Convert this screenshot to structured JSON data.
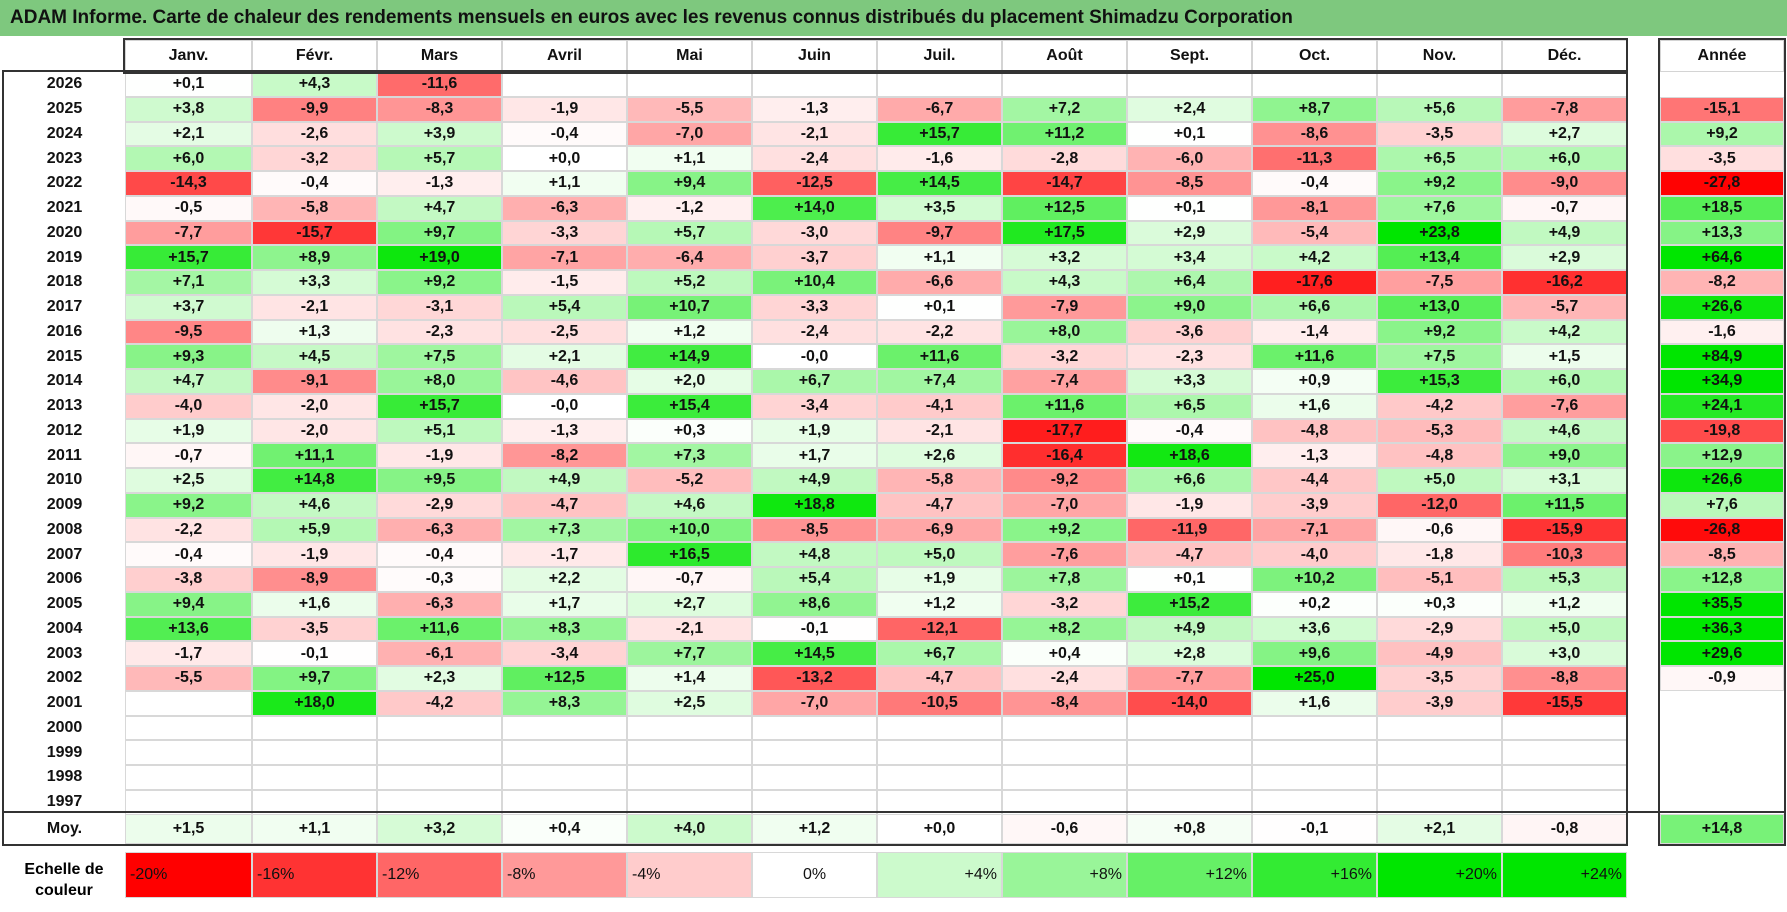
{
  "title": "ADAM Informe. Carte de chaleur des rendements mensuels en euros avec les revenus connus distribués du placement Shimadzu Corporation",
  "chart_data": {
    "type": "heatmap",
    "title": "ADAM Informe. Carte de chaleur des rendements mensuels en euros avec les revenus connus distribués du placement Shimadzu Corporation",
    "months": [
      "Janv.",
      "Févr.",
      "Mars",
      "Avril",
      "Mai",
      "Juin",
      "Juil.",
      "Août",
      "Sept.",
      "Oct.",
      "Nov.",
      "Déc."
    ],
    "year_header": "Année",
    "rows": [
      {
        "year": "2026",
        "values": [
          "+0,1",
          "+4,3",
          "-11,6",
          "",
          "",
          "",
          "",
          "",
          "",
          "",
          "",
          ""
        ],
        "annual": ""
      },
      {
        "year": "2025",
        "values": [
          "+3,8",
          "-9,9",
          "-8,3",
          "-1,9",
          "-5,5",
          "-1,3",
          "-6,7",
          "+7,2",
          "+2,4",
          "+8,7",
          "+5,6",
          "-7,8"
        ],
        "annual": "-15,1"
      },
      {
        "year": "2024",
        "values": [
          "+2,1",
          "-2,6",
          "+3,9",
          "-0,4",
          "-7,0",
          "-2,1",
          "+15,7",
          "+11,2",
          "+0,1",
          "-8,6",
          "-3,5",
          "+2,7"
        ],
        "annual": "+9,2"
      },
      {
        "year": "2023",
        "values": [
          "+6,0",
          "-3,2",
          "+5,7",
          "+0,0",
          "+1,1",
          "-2,4",
          "-1,6",
          "-2,8",
          "-6,0",
          "-11,3",
          "+6,5",
          "+6,0"
        ],
        "annual": "-3,5"
      },
      {
        "year": "2022",
        "values": [
          "-14,3",
          "-0,4",
          "-1,3",
          "+1,1",
          "+9,4",
          "-12,5",
          "+14,5",
          "-14,7",
          "-8,5",
          "-0,4",
          "+9,2",
          "-9,0"
        ],
        "annual": "-27,8"
      },
      {
        "year": "2021",
        "values": [
          "-0,5",
          "-5,8",
          "+4,7",
          "-6,3",
          "-1,2",
          "+14,0",
          "+3,5",
          "+12,5",
          "+0,1",
          "-8,1",
          "+7,6",
          "-0,7"
        ],
        "annual": "+18,5"
      },
      {
        "year": "2020",
        "values": [
          "-7,7",
          "-15,7",
          "+9,7",
          "-3,3",
          "+5,7",
          "-3,0",
          "-9,7",
          "+17,5",
          "+2,9",
          "-5,4",
          "+23,8",
          "+4,9"
        ],
        "annual": "+13,3"
      },
      {
        "year": "2019",
        "values": [
          "+15,7",
          "+8,9",
          "+19,0",
          "-7,1",
          "-6,4",
          "-3,7",
          "+1,1",
          "+3,2",
          "+3,4",
          "+4,2",
          "+13,4",
          "+2,9"
        ],
        "annual": "+64,6"
      },
      {
        "year": "2018",
        "values": [
          "+7,1",
          "+3,3",
          "+9,2",
          "-1,5",
          "+5,2",
          "+10,4",
          "-6,6",
          "+4,3",
          "+6,4",
          "-17,6",
          "-7,5",
          "-16,2"
        ],
        "annual": "-8,2"
      },
      {
        "year": "2017",
        "values": [
          "+3,7",
          "-2,1",
          "-3,1",
          "+5,4",
          "+10,7",
          "-3,3",
          "+0,1",
          "-7,9",
          "+9,0",
          "+6,6",
          "+13,0",
          "-5,7"
        ],
        "annual": "+26,6"
      },
      {
        "year": "2016",
        "values": [
          "-9,5",
          "+1,3",
          "-2,3",
          "-2,5",
          "+1,2",
          "-2,4",
          "-2,2",
          "+8,0",
          "-3,6",
          "-1,4",
          "+9,2",
          "+4,2"
        ],
        "annual": "-1,6"
      },
      {
        "year": "2015",
        "values": [
          "+9,3",
          "+4,5",
          "+7,5",
          "+2,1",
          "+14,9",
          "-0,0",
          "+11,6",
          "-3,2",
          "-2,3",
          "+11,6",
          "+7,5",
          "+1,5"
        ],
        "annual": "+84,9"
      },
      {
        "year": "2014",
        "values": [
          "+4,7",
          "-9,1",
          "+8,0",
          "-4,6",
          "+2,0",
          "+6,7",
          "+7,4",
          "-7,4",
          "+3,3",
          "+0,9",
          "+15,3",
          "+6,0"
        ],
        "annual": "+34,9"
      },
      {
        "year": "2013",
        "values": [
          "-4,0",
          "-2,0",
          "+15,7",
          "-0,0",
          "+15,4",
          "-3,4",
          "-4,1",
          "+11,6",
          "+6,5",
          "+1,6",
          "-4,2",
          "-7,6"
        ],
        "annual": "+24,1"
      },
      {
        "year": "2012",
        "values": [
          "+1,9",
          "-2,0",
          "+5,1",
          "-1,3",
          "+0,3",
          "+1,9",
          "-2,1",
          "-17,7",
          "-0,4",
          "-4,8",
          "-5,3",
          "+4,6"
        ],
        "annual": "-19,8"
      },
      {
        "year": "2011",
        "values": [
          "-0,7",
          "+11,1",
          "-1,9",
          "-8,2",
          "+7,3",
          "+1,7",
          "+2,6",
          "-16,4",
          "+18,6",
          "-1,3",
          "-4,8",
          "+9,0"
        ],
        "annual": "+12,9"
      },
      {
        "year": "2010",
        "values": [
          "+2,5",
          "+14,8",
          "+9,5",
          "+4,9",
          "-5,2",
          "+4,9",
          "-5,8",
          "-9,2",
          "+6,6",
          "-4,4",
          "+5,0",
          "+3,1"
        ],
        "annual": "+26,6"
      },
      {
        "year": "2009",
        "values": [
          "+9,2",
          "+4,6",
          "-2,9",
          "-4,7",
          "+4,6",
          "+18,8",
          "-4,7",
          "-7,0",
          "-1,9",
          "-3,9",
          "-12,0",
          "+11,5"
        ],
        "annual": "+7,6"
      },
      {
        "year": "2008",
        "values": [
          "-2,2",
          "+5,9",
          "-6,3",
          "+7,3",
          "+10,0",
          "-8,5",
          "-6,9",
          "+9,2",
          "-11,9",
          "-7,1",
          "-0,6",
          "-15,9"
        ],
        "annual": "-26,8"
      },
      {
        "year": "2007",
        "values": [
          "-0,4",
          "-1,9",
          "-0,4",
          "-1,7",
          "+16,5",
          "+4,8",
          "+5,0",
          "-7,6",
          "-4,7",
          "-4,0",
          "-1,8",
          "-10,3"
        ],
        "annual": "-8,5"
      },
      {
        "year": "2006",
        "values": [
          "-3,8",
          "-8,9",
          "-0,3",
          "+2,2",
          "-0,7",
          "+5,4",
          "+1,9",
          "+7,8",
          "+0,1",
          "+10,2",
          "-5,1",
          "+5,3"
        ],
        "annual": "+12,8"
      },
      {
        "year": "2005",
        "values": [
          "+9,4",
          "+1,6",
          "-6,3",
          "+1,7",
          "+2,7",
          "+8,6",
          "+1,2",
          "-3,2",
          "+15,2",
          "+0,2",
          "+0,3",
          "+1,2"
        ],
        "annual": "+35,5"
      },
      {
        "year": "2004",
        "values": [
          "+13,6",
          "-3,5",
          "+11,6",
          "+8,3",
          "-2,1",
          "-0,1",
          "-12,1",
          "+8,2",
          "+4,9",
          "+3,6",
          "-2,9",
          "+5,0"
        ],
        "annual": "+36,3"
      },
      {
        "year": "2003",
        "values": [
          "-1,7",
          "-0,1",
          "-6,1",
          "-3,4",
          "+7,7",
          "+14,5",
          "+6,7",
          "+0,4",
          "+2,8",
          "+9,6",
          "-4,9",
          "+3,0"
        ],
        "annual": "+29,6"
      },
      {
        "year": "2002",
        "values": [
          "-5,5",
          "+9,7",
          "+2,3",
          "+12,5",
          "+1,4",
          "-13,2",
          "-4,7",
          "-2,4",
          "-7,7",
          "+25,0",
          "-3,5",
          "-8,8"
        ],
        "annual": "-0,9"
      },
      {
        "year": "2001",
        "values": [
          "",
          "+18,0",
          "-4,2",
          "+8,3",
          "+2,5",
          "-7,0",
          "-10,5",
          "-8,4",
          "-14,0",
          "+1,6",
          "-3,9",
          "-15,5"
        ],
        "annual": ""
      },
      {
        "year": "2000",
        "values": [
          "",
          "",
          "",
          "",
          "",
          "",
          "",
          "",
          "",
          "",
          "",
          ""
        ],
        "annual": ""
      },
      {
        "year": "1999",
        "values": [
          "",
          "",
          "",
          "",
          "",
          "",
          "",
          "",
          "",
          "",
          "",
          ""
        ],
        "annual": ""
      },
      {
        "year": "1998",
        "values": [
          "",
          "",
          "",
          "",
          "",
          "",
          "",
          "",
          "",
          "",
          "",
          ""
        ],
        "annual": ""
      },
      {
        "year": "1997",
        "values": [
          "",
          "",
          "",
          "",
          "",
          "",
          "",
          "",
          "",
          "",
          "",
          ""
        ],
        "annual": ""
      }
    ],
    "average": {
      "label": "Moy.",
      "values": [
        "+1,5",
        "+1,1",
        "+3,2",
        "+0,4",
        "+4,0",
        "+1,2",
        "+0,0",
        "-0,6",
        "+0,8",
        "-0,1",
        "+2,1",
        "-0,8"
      ],
      "annual": "+14,8"
    },
    "scale": {
      "label_line1": "Echelle de",
      "label_line2": "couleur",
      "steps": [
        "-20%",
        "-16%",
        "-12%",
        "-8%",
        "-4%",
        "0%",
        "+4%",
        "+8%",
        "+12%",
        "+16%",
        "+20%",
        "+24%"
      ],
      "step_values": [
        -20,
        -16,
        -12,
        -8,
        -4,
        0,
        4,
        8,
        12,
        16,
        20,
        24
      ]
    },
    "colors": {
      "negative": "#ff0000",
      "positive": "#00e600",
      "neutral": "#ffffff",
      "title_bg": "#7ec87e"
    }
  }
}
